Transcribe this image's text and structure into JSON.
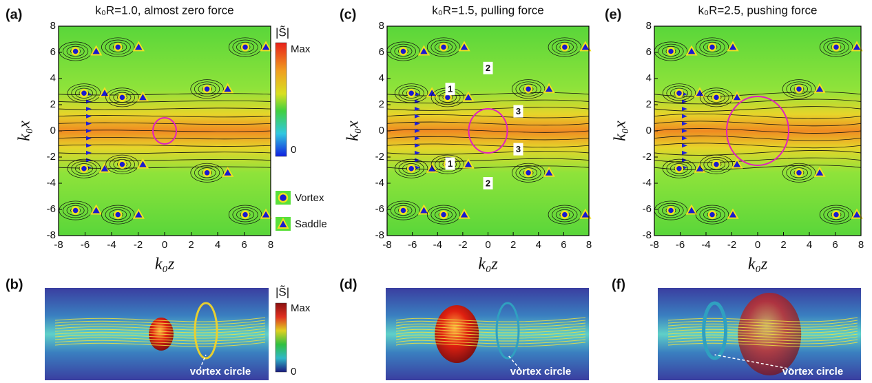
{
  "panels": [
    {
      "label": "(a)",
      "title": "k₀R=1.0, almost zero force",
      "xlabel": "k₀z",
      "ylabel": "k₀x",
      "xlim": [
        -8,
        8
      ],
      "ylim": [
        -8,
        8
      ],
      "xticks": [
        -8,
        -6,
        -4,
        -2,
        0,
        2,
        4,
        6,
        8
      ],
      "yticks": [
        -8,
        -6,
        -4,
        -2,
        0,
        2,
        4,
        6,
        8
      ]
    },
    {
      "label": "(c)",
      "title": "k₀R=1.5, pulling force",
      "xlabel": "k₀z",
      "ylabel": "k₀x",
      "xlim": [
        -8,
        8
      ],
      "ylim": [
        -8,
        8
      ],
      "xticks": [
        -8,
        -6,
        -4,
        -2,
        0,
        2,
        4,
        6,
        8
      ],
      "yticks": [
        -8,
        -6,
        -4,
        -2,
        0,
        2,
        4,
        6,
        8
      ],
      "annotations": [
        "1",
        "2",
        "3",
        "1",
        "2",
        "3"
      ]
    },
    {
      "label": "(e)",
      "title": "k₀R=2.5, pushing force",
      "xlabel": "k₀z",
      "ylabel": "k₀x",
      "xlim": [
        -8,
        8
      ],
      "ylim": [
        -8,
        8
      ],
      "xticks": [
        -8,
        -6,
        -4,
        -2,
        0,
        2,
        4,
        6,
        8
      ],
      "yticks": [
        -8,
        -6,
        -4,
        -2,
        0,
        2,
        4,
        6,
        8
      ]
    }
  ],
  "colorbar_top": {
    "title": "|S̃|",
    "max": "Max",
    "min": "0"
  },
  "legend": {
    "vortex": "Vortex",
    "saddle": "Saddle"
  },
  "bottom_panels": [
    {
      "label": "(b)",
      "annotation": "vortex circle"
    },
    {
      "label": "(d)",
      "annotation": "vortex circle"
    },
    {
      "label": "(f)",
      "annotation": "vortex circle"
    }
  ],
  "colorbar_bottom": {
    "title": "|S̃|",
    "max": "Max",
    "min": "0"
  }
}
